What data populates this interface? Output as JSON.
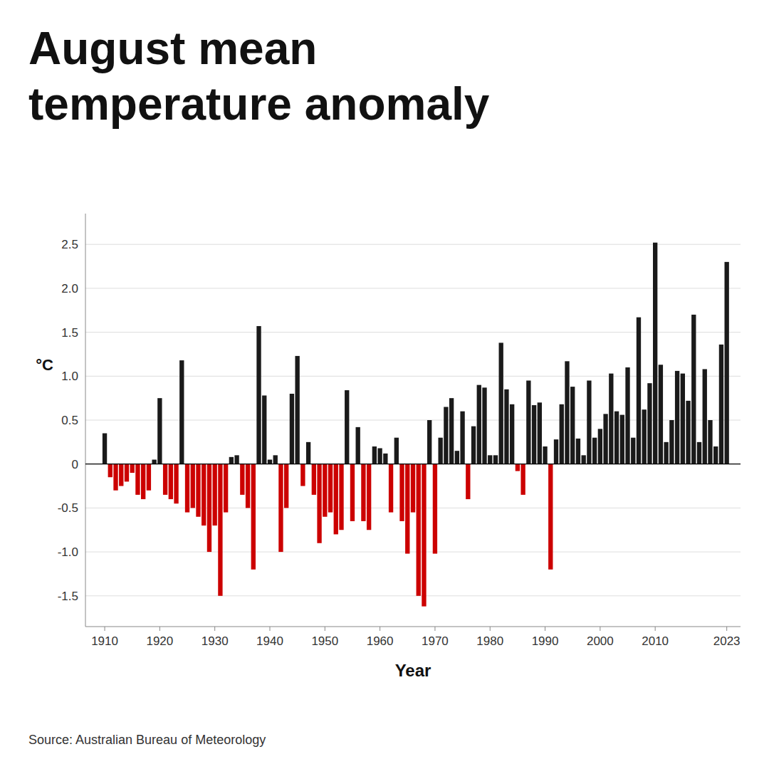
{
  "chart_data": {
    "type": "bar",
    "title": "August mean\ntemperature anomaly",
    "xlabel": "Year",
    "ylabel": "°C",
    "source": "Source: Australian Bureau of Meteorology",
    "x": [
      1910,
      1911,
      1912,
      1913,
      1914,
      1915,
      1916,
      1917,
      1918,
      1919,
      1920,
      1921,
      1922,
      1923,
      1924,
      1925,
      1926,
      1927,
      1928,
      1929,
      1930,
      1931,
      1932,
      1933,
      1934,
      1935,
      1936,
      1937,
      1938,
      1939,
      1940,
      1941,
      1942,
      1943,
      1944,
      1945,
      1946,
      1947,
      1948,
      1949,
      1950,
      1951,
      1952,
      1953,
      1954,
      1955,
      1956,
      1957,
      1958,
      1959,
      1960,
      1961,
      1962,
      1963,
      1964,
      1965,
      1966,
      1967,
      1968,
      1969,
      1970,
      1971,
      1972,
      1973,
      1974,
      1975,
      1976,
      1977,
      1978,
      1979,
      1980,
      1981,
      1982,
      1983,
      1984,
      1985,
      1986,
      1987,
      1988,
      1989,
      1990,
      1991,
      1992,
      1993,
      1994,
      1995,
      1996,
      1997,
      1998,
      1999,
      2000,
      2001,
      2002,
      2003,
      2004,
      2005,
      2006,
      2007,
      2008,
      2009,
      2010,
      2011,
      2012,
      2013,
      2014,
      2015,
      2016,
      2017,
      2018,
      2019,
      2020,
      2021,
      2022,
      2023
    ],
    "values": [
      0.35,
      -0.15,
      -0.3,
      -0.25,
      -0.2,
      -0.1,
      -0.35,
      -0.4,
      -0.3,
      0.05,
      0.75,
      -0.35,
      -0.4,
      -0.45,
      1.18,
      -0.55,
      -0.5,
      -0.6,
      -0.7,
      -1.0,
      -0.7,
      -1.5,
      -0.55,
      0.08,
      0.1,
      -0.35,
      -0.5,
      -1.2,
      1.57,
      0.78,
      0.05,
      0.1,
      -1.0,
      -0.5,
      0.8,
      1.23,
      -0.25,
      0.25,
      -0.35,
      -0.9,
      -0.6,
      -0.55,
      -0.8,
      -0.75,
      0.84,
      -0.65,
      0.42,
      -0.65,
      -0.75,
      0.2,
      0.18,
      0.12,
      -0.55,
      0.3,
      -0.65,
      -1.02,
      -0.55,
      -1.5,
      -1.62,
      0.5,
      -1.02,
      0.3,
      0.65,
      0.75,
      0.15,
      0.6,
      -0.4,
      0.43,
      0.9,
      0.87,
      0.1,
      0.1,
      1.38,
      0.85,
      0.68,
      -0.08,
      -0.35,
      0.95,
      0.67,
      0.7,
      0.2,
      -1.2,
      0.28,
      0.68,
      1.17,
      0.88,
      0.29,
      0.1,
      0.95,
      0.3,
      0.4,
      0.57,
      1.03,
      0.6,
      0.56,
      1.1,
      0.3,
      1.67,
      0.62,
      0.92,
      2.52,
      1.13,
      0.25,
      0.5,
      1.06,
      1.03,
      0.72,
      1.7,
      0.25,
      1.08,
      0.5,
      0.2,
      1.36,
      2.3
    ],
    "colors": [
      "#1a1a1a",
      "#cc0000",
      "#cc0000",
      "#cc0000",
      "#cc0000",
      "#cc0000",
      "#cc0000",
      "#cc0000",
      "#cc0000",
      "#1a1a1a",
      "#1a1a1a",
      "#cc0000",
      "#cc0000",
      "#cc0000",
      "#1a1a1a",
      "#cc0000",
      "#cc0000",
      "#cc0000",
      "#cc0000",
      "#cc0000",
      "#cc0000",
      "#cc0000",
      "#cc0000",
      "#1a1a1a",
      "#1a1a1a",
      "#cc0000",
      "#cc0000",
      "#cc0000",
      "#1a1a1a",
      "#1a1a1a",
      "#1a1a1a",
      "#1a1a1a",
      "#cc0000",
      "#cc0000",
      "#1a1a1a",
      "#1a1a1a",
      "#cc0000",
      "#1a1a1a",
      "#cc0000",
      "#cc0000",
      "#cc0000",
      "#cc0000",
      "#cc0000",
      "#cc0000",
      "#1a1a1a",
      "#cc0000",
      "#1a1a1a",
      "#cc0000",
      "#cc0000",
      "#1a1a1a",
      "#1a1a1a",
      "#1a1a1a",
      "#cc0000",
      "#1a1a1a",
      "#cc0000",
      "#cc0000",
      "#cc0000",
      "#cc0000",
      "#cc0000",
      "#1a1a1a",
      "#cc0000",
      "#1a1a1a",
      "#1a1a1a",
      "#1a1a1a",
      "#1a1a1a",
      "#1a1a1a",
      "#cc0000",
      "#1a1a1a",
      "#1a1a1a",
      "#1a1a1a",
      "#1a1a1a",
      "#1a1a1a",
      "#1a1a1a",
      "#1a1a1a",
      "#1a1a1a",
      "#cc0000",
      "#cc0000",
      "#1a1a1a",
      "#1a1a1a",
      "#1a1a1a",
      "#1a1a1a",
      "#cc0000",
      "#1a1a1a",
      "#1a1a1a",
      "#1a1a1a",
      "#1a1a1a",
      "#1a1a1a",
      "#1a1a1a",
      "#1a1a1a",
      "#1a1a1a",
      "#1a1a1a",
      "#1a1a1a",
      "#1a1a1a",
      "#1a1a1a",
      "#1a1a1a",
      "#1a1a1a",
      "#1a1a1a",
      "#1a1a1a",
      "#1a1a1a",
      "#1a1a1a",
      "#1a1a1a",
      "#1a1a1a",
      "#1a1a1a",
      "#1a1a1a",
      "#1a1a1a",
      "#1a1a1a",
      "#1a1a1a",
      "#1a1a1a",
      "#1a1a1a",
      "#1a1a1a",
      "#1a1a1a",
      "#1a1a1a",
      "#1a1a1a",
      "#1a1a1a"
    ],
    "xlim": [
      1906.5,
      2025.5
    ],
    "xticks": [
      1910,
      1920,
      1930,
      1940,
      1950,
      1960,
      1970,
      1980,
      1990,
      2000,
      2010,
      2023
    ],
    "ylim": [
      -1.85,
      2.85
    ],
    "yticks": [
      -1.5,
      {
        "value": -1.0,
        "label": "-1.0"
      },
      -0.5,
      0,
      0.5,
      {
        "value": 1.0,
        "label": "1.0"
      },
      1.5,
      {
        "value": 2.0,
        "label": "2.0"
      },
      2.5
    ],
    "grid": true
  }
}
